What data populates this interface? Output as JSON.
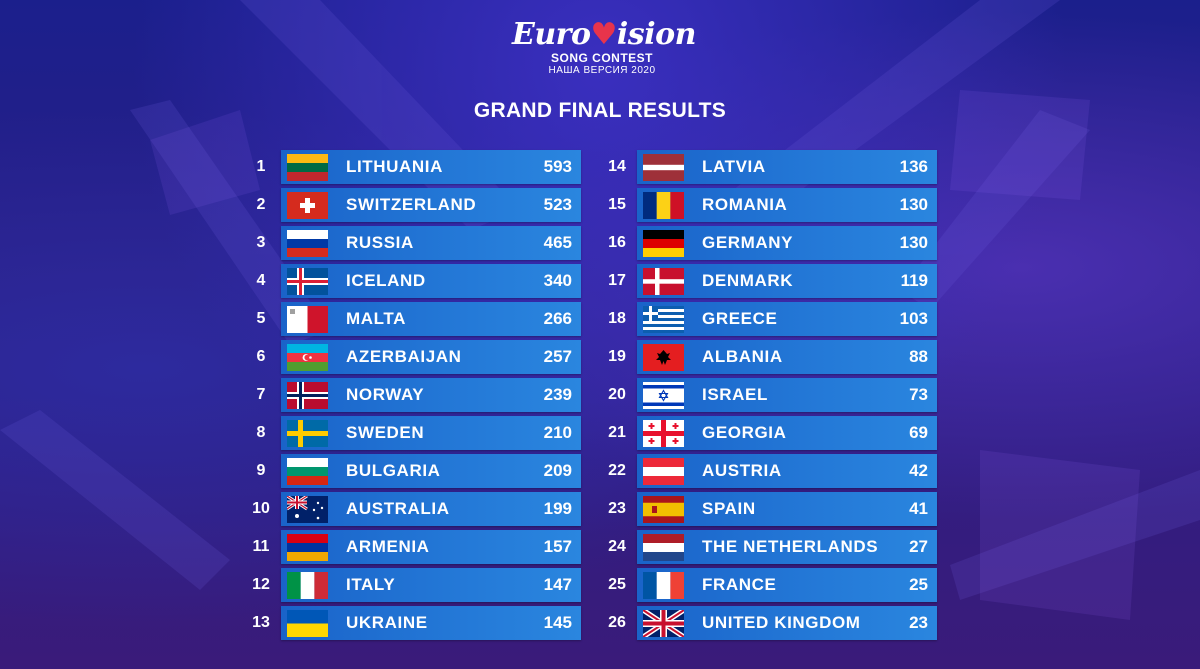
{
  "logo": {
    "part1": "Euro",
    "heart": "♥",
    "part2": "ision",
    "subtitle": "SONG CONTEST",
    "subtitle2": "НАША ВЕРСИЯ 2020"
  },
  "title": "GRAND FINAL RESULTS",
  "results": [
    {
      "rank": "1",
      "country": "LITHUANIA",
      "points": "593",
      "flag": "lithuania-flag"
    },
    {
      "rank": "2",
      "country": "SWITZERLAND",
      "points": "523",
      "flag": "switzerland-flag"
    },
    {
      "rank": "3",
      "country": "RUSSIA",
      "points": "465",
      "flag": "russia-flag"
    },
    {
      "rank": "4",
      "country": "ICELAND",
      "points": "340",
      "flag": "iceland-flag"
    },
    {
      "rank": "5",
      "country": "MALTA",
      "points": "266",
      "flag": "malta-flag"
    },
    {
      "rank": "6",
      "country": "AZERBAIJAN",
      "points": "257",
      "flag": "azerbaijan-flag"
    },
    {
      "rank": "7",
      "country": "NORWAY",
      "points": "239",
      "flag": "norway-flag"
    },
    {
      "rank": "8",
      "country": "SWEDEN",
      "points": "210",
      "flag": "sweden-flag"
    },
    {
      "rank": "9",
      "country": "BULGARIA",
      "points": "209",
      "flag": "bulgaria-flag"
    },
    {
      "rank": "10",
      "country": "AUSTRALIA",
      "points": "199",
      "flag": "australia-flag"
    },
    {
      "rank": "11",
      "country": "ARMENIA",
      "points": "157",
      "flag": "armenia-flag"
    },
    {
      "rank": "12",
      "country": "ITALY",
      "points": "147",
      "flag": "italy-flag"
    },
    {
      "rank": "13",
      "country": "UKRAINE",
      "points": "145",
      "flag": "ukraine-flag"
    },
    {
      "rank": "14",
      "country": "LATVIA",
      "points": "136",
      "flag": "latvia-flag"
    },
    {
      "rank": "15",
      "country": "ROMANIA",
      "points": "130",
      "flag": "romania-flag"
    },
    {
      "rank": "16",
      "country": "GERMANY",
      "points": "130",
      "flag": "germany-flag"
    },
    {
      "rank": "17",
      "country": "DENMARK",
      "points": "119",
      "flag": "denmark-flag"
    },
    {
      "rank": "18",
      "country": "GREECE",
      "points": "103",
      "flag": "greece-flag"
    },
    {
      "rank": "19",
      "country": "ALBANIA",
      "points": "88",
      "flag": "albania-flag"
    },
    {
      "rank": "20",
      "country": "ISRAEL",
      "points": "73",
      "flag": "israel-flag"
    },
    {
      "rank": "21",
      "country": "GEORGIA",
      "points": "69",
      "flag": "georgia-flag"
    },
    {
      "rank": "22",
      "country": "AUSTRIA",
      "points": "42",
      "flag": "austria-flag"
    },
    {
      "rank": "23",
      "country": "SPAIN",
      "points": "41",
      "flag": "spain-flag"
    },
    {
      "rank": "24",
      "country": "THE NETHERLANDS",
      "points": "27",
      "flag": "netherlands-flag"
    },
    {
      "rank": "25",
      "country": "FRANCE",
      "points": "25",
      "flag": "france-flag"
    },
    {
      "rank": "26",
      "country": "UNITED KINGDOM",
      "points": "23",
      "flag": "united-kingdom-flag"
    }
  ],
  "colors": {
    "background": "#22208a",
    "bar": "#2377d6",
    "text": "#ffffff",
    "heart": "#e8344b"
  }
}
